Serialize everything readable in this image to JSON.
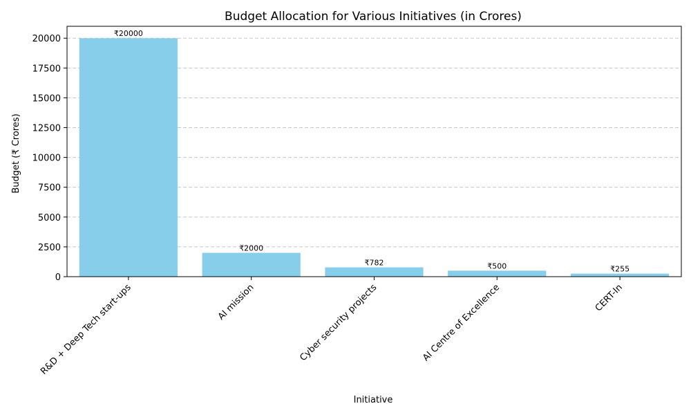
{
  "chart_data": {
    "type": "bar",
    "title": "Budget Allocation for Various Initiatives (in Crores)",
    "xlabel": "Initiative",
    "ylabel": "Budget (₹ Crores)",
    "categories": [
      "R&D + Deep Tech start-ups",
      "AI mission",
      "Cyber security projects",
      "AI Centre of Excellence",
      "CERT-In"
    ],
    "values": [
      20000,
      2000,
      782,
      500,
      255
    ],
    "data_labels": [
      "₹20000",
      "₹2000",
      "₹782",
      "₹500",
      "₹255"
    ],
    "ylim": [
      0,
      21000
    ],
    "yticks": [
      0,
      2500,
      5000,
      7500,
      10000,
      12500,
      15000,
      17500,
      20000
    ],
    "grid": true,
    "bar_color": "#87CEEB"
  }
}
